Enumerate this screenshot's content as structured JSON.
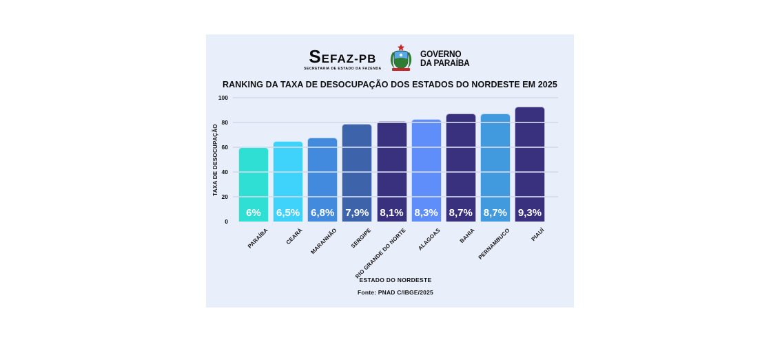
{
  "page": {
    "background": "#ffffff",
    "card_background": "#e9eefb",
    "gridline_color": "rgba(211,217,233,0.85)"
  },
  "header": {
    "sefaz_wordmark": "SEFAZ-PB",
    "sefaz_subtitle": "SECRETARIA DE ESTADO DA FAZENDA",
    "governo_line1": "GOVERNO",
    "governo_line2": "DA PARAÍBA",
    "crest_icon": "paraiba-coat-of-arms-icon"
  },
  "chart_data": {
    "type": "bar",
    "title": "RANKING DA TAXA DE DESOCUPAÇÃO DOS ESTADOS DO NORDESTE EM 2025",
    "xlabel": "ESTADO DO NORDESTE",
    "ylabel": "TAXA DE DESOCUPAÇÃO",
    "source": "Fonte: PNAD C/IBGE/2025",
    "ylim": [
      0,
      100
    ],
    "yticks": [
      0,
      20,
      40,
      60,
      80,
      100
    ],
    "grid": true,
    "legend": false,
    "categories": [
      "PARAÍBA",
      "CEARÁ",
      "MARANHÃO",
      "SERGIPE",
      "RIO GRANDE DO NORTE",
      "ALAGOAS",
      "BAHIA",
      "PERNAMBUCO",
      "PIAUÍ"
    ],
    "values_percent": [
      6,
      6.5,
      6.8,
      7.9,
      8.1,
      8.3,
      8.7,
      8.7,
      9.3
    ],
    "bar_heights_axis_units": [
      60,
      65,
      68,
      79,
      81,
      83,
      87,
      87,
      93
    ],
    "value_labels": [
      "6%",
      "6,5%",
      "6,8%",
      "7,9%",
      "8,1%",
      "8,3%",
      "8,7%",
      "8,7%",
      "9,3%"
    ],
    "bar_colors": [
      "#2fdfd4",
      "#3fd2fb",
      "#418add",
      "#3d64ab",
      "#39317e",
      "#5f8efa",
      "#39317e",
      "#419ade",
      "#39317e"
    ]
  }
}
